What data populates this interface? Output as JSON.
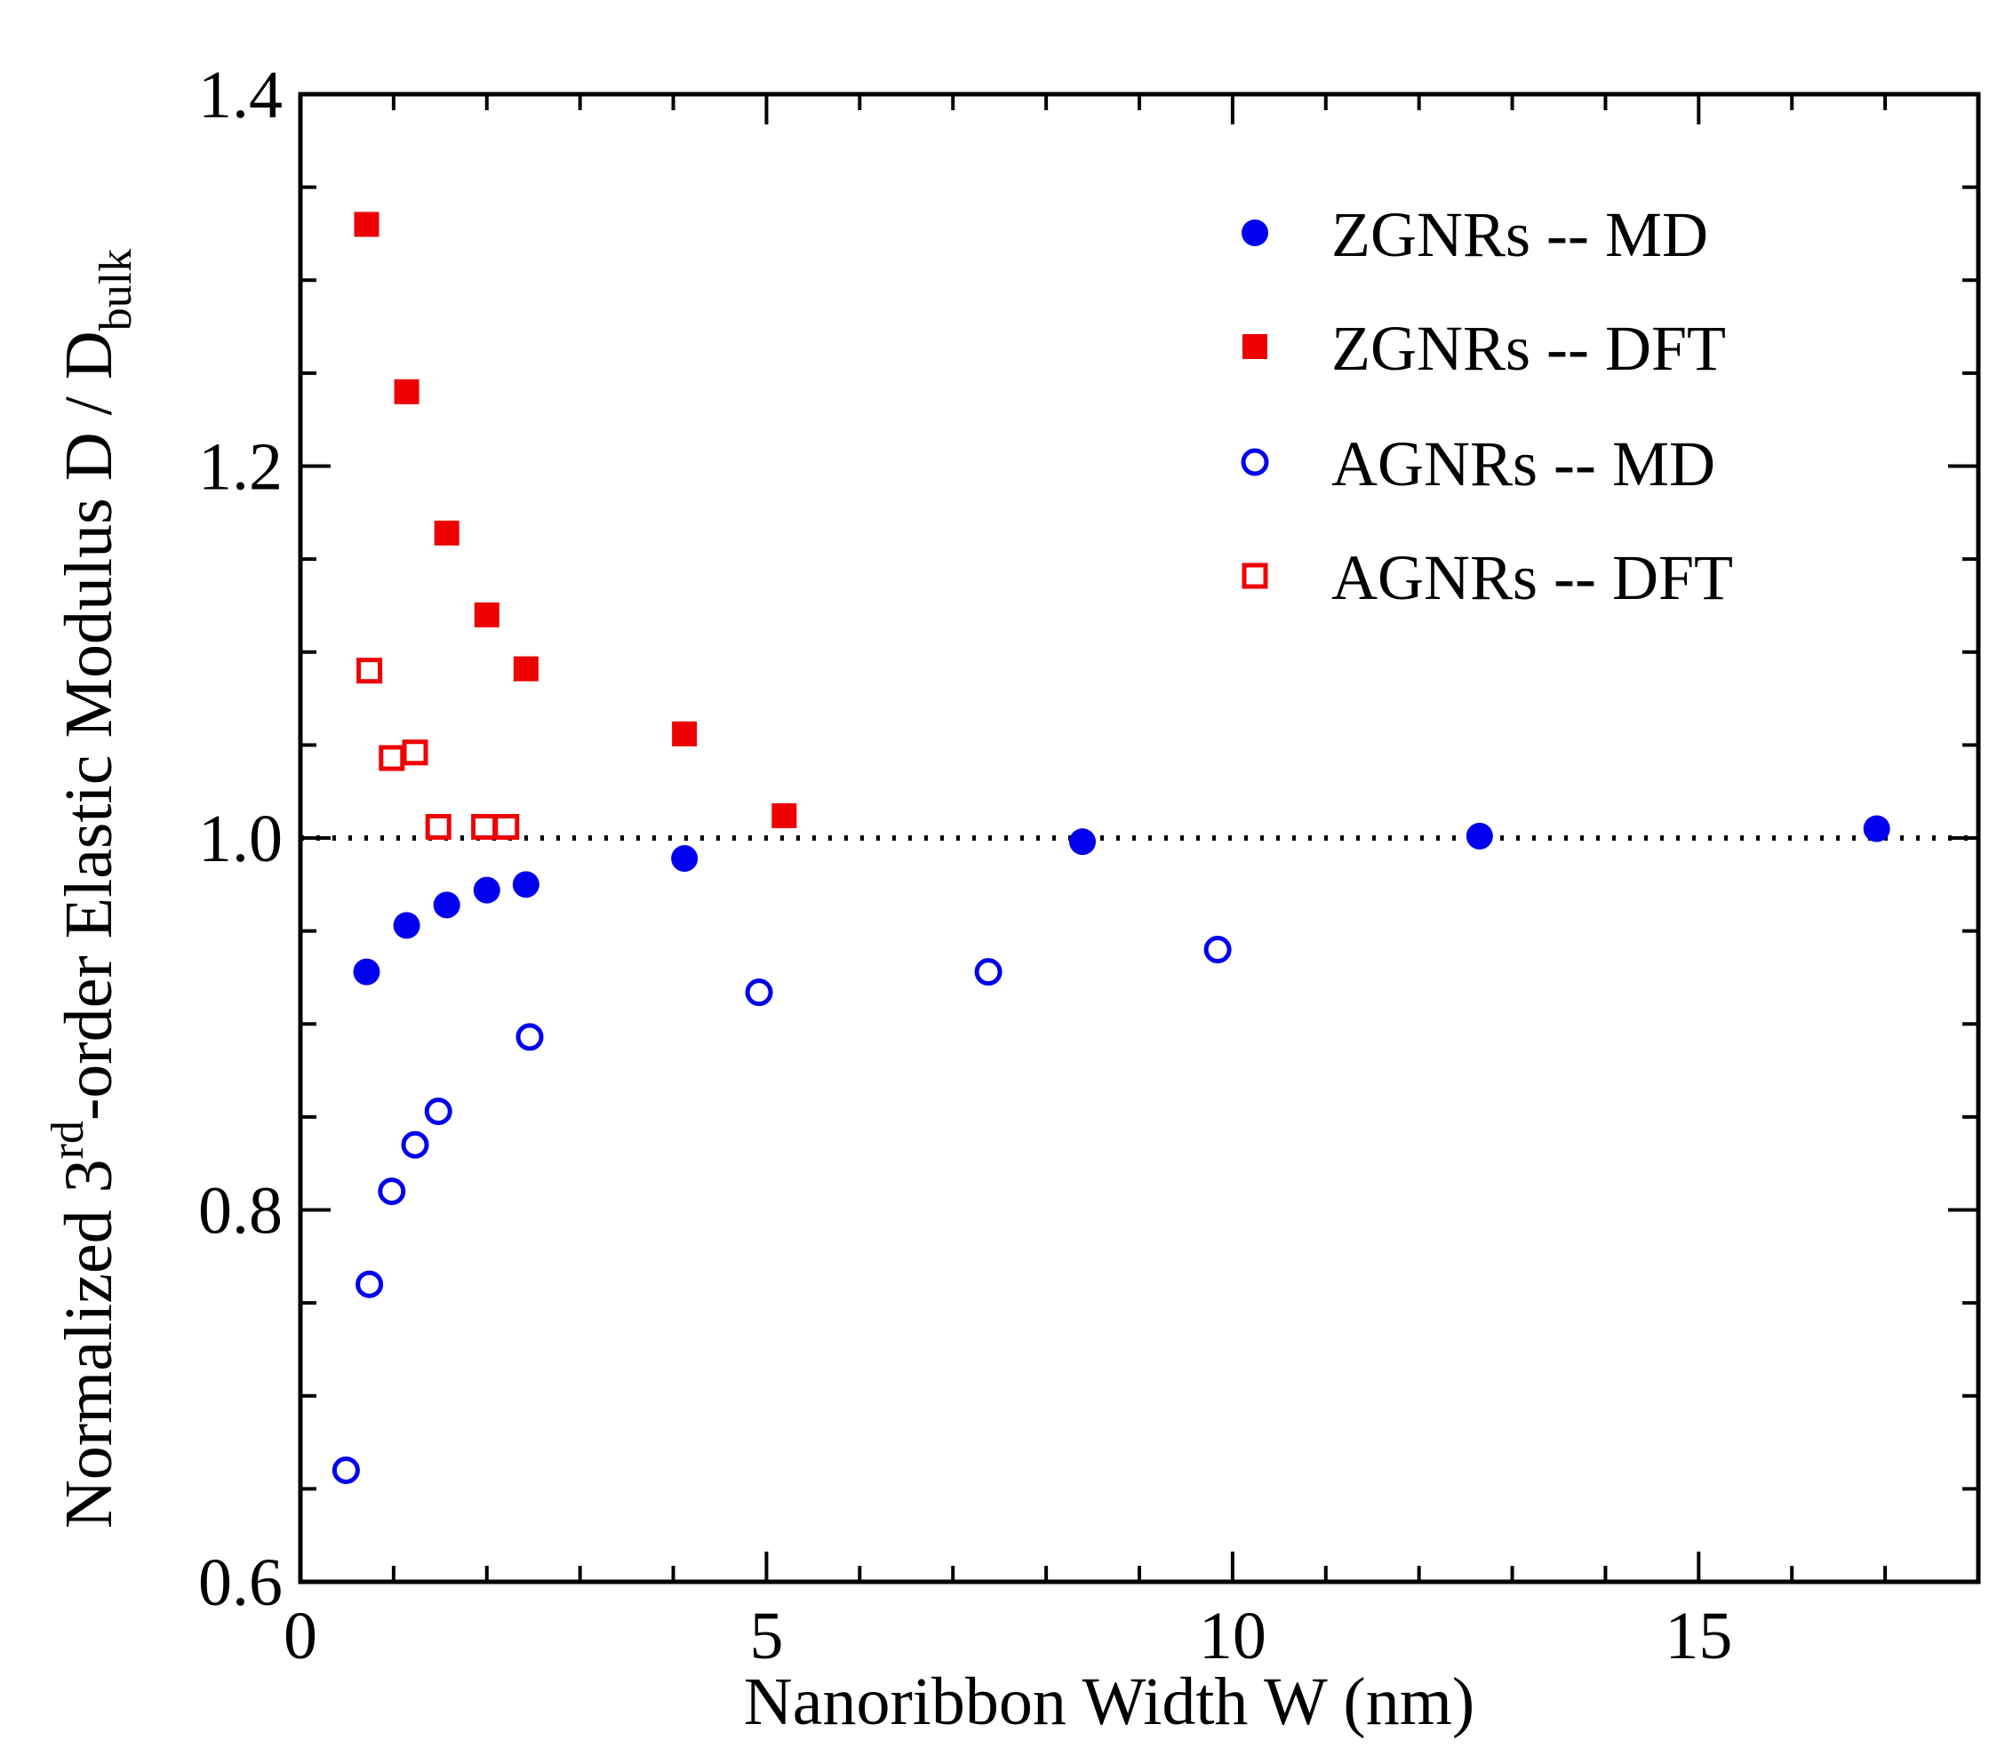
{
  "chart_data": {
    "type": "scatter",
    "title": "",
    "xlabel": "Nanoribbon Width  W (nm)",
    "ylabel": {
      "main_prefix": "Normalized 3",
      "superscript": "rd",
      "main_suffix": "-order Elastic Modulus  D / D",
      "subscript": "bulk"
    },
    "xlim": [
      0,
      18
    ],
    "ylim": [
      0.6,
      1.4
    ],
    "x_major_ticks": [
      0,
      5,
      10,
      15
    ],
    "x_tick_labels": [
      "0",
      "5",
      "10",
      "15"
    ],
    "x_minor_step": 1,
    "y_major_ticks": [
      0.6,
      0.8,
      1.0,
      1.2,
      1.4
    ],
    "y_tick_labels": [
      "0.6",
      "0.8",
      "1.0",
      "1.2",
      "1.4"
    ],
    "y_minor_step": 0.05,
    "grid": false,
    "reference_line": {
      "y": 1.0,
      "style": "dotted"
    },
    "legend_position": "top-right",
    "series": [
      {
        "name": "ZGNRs -- MD",
        "marker": "circle-filled",
        "color": "#0000ee",
        "x": [
          0.71,
          1.14,
          1.57,
          2.0,
          2.42,
          4.12,
          8.39,
          12.65,
          16.91
        ],
        "y": [
          0.928,
          0.953,
          0.964,
          0.972,
          0.975,
          0.989,
          0.998,
          1.001,
          1.005
        ]
      },
      {
        "name": "ZGNRs -- DFT",
        "marker": "square-filled",
        "color": "#ee0000",
        "x": [
          0.71,
          1.14,
          1.57,
          2.0,
          2.42,
          4.12,
          5.19
        ],
        "y": [
          1.33,
          1.24,
          1.164,
          1.12,
          1.091,
          1.056,
          1.012
        ]
      },
      {
        "name": "AGNRs -- MD",
        "marker": "circle-open",
        "color": "#0000ee",
        "x": [
          0.49,
          0.74,
          0.98,
          1.23,
          1.48,
          2.46,
          4.92,
          7.38,
          9.84
        ],
        "y": [
          0.66,
          0.76,
          0.81,
          0.835,
          0.853,
          0.893,
          0.917,
          0.928,
          0.94
        ]
      },
      {
        "name": "AGNRs -- DFT",
        "marker": "square-open",
        "color": "#ee0000",
        "x": [
          0.74,
          0.98,
          1.23,
          1.48,
          1.97,
          2.21
        ],
        "y": [
          1.09,
          1.043,
          1.046,
          1.006,
          1.006,
          1.006
        ]
      }
    ]
  }
}
